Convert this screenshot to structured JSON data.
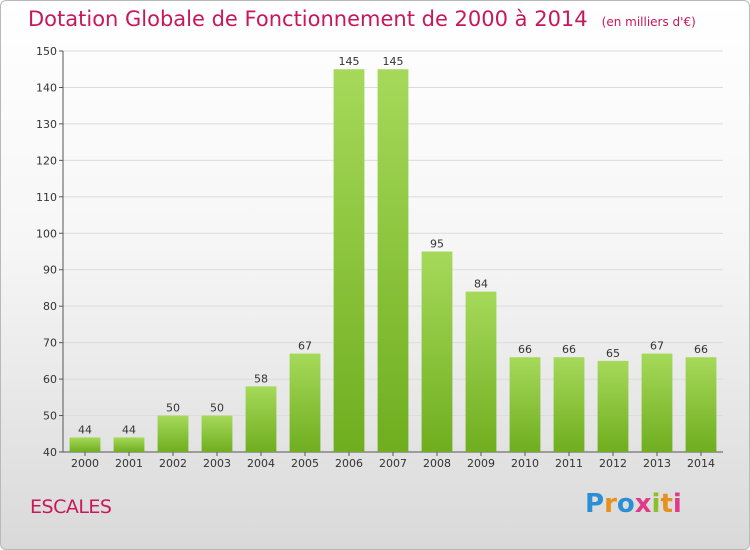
{
  "header": {
    "title": "Dotation Globale de Fonctionnement de 2000 à 2014",
    "subtitle": "(en milliers d'€)"
  },
  "place": "ESCALES",
  "logo": {
    "text": "Proxiti"
  },
  "colors": {
    "title": "#c8175a",
    "bar_light": "#a6d95a",
    "bar_dark": "#6fae1f"
  },
  "chart_data": {
    "type": "bar",
    "title": "Dotation Globale de Fonctionnement de 2000 à 2014",
    "subtitle": "(en milliers d'€)",
    "xlabel": "",
    "ylabel": "",
    "categories": [
      "2000",
      "2001",
      "2002",
      "2003",
      "2004",
      "2005",
      "2006",
      "2007",
      "2008",
      "2009",
      "2010",
      "2011",
      "2012",
      "2013",
      "2014"
    ],
    "values": [
      44,
      44,
      50,
      50,
      58,
      67,
      145,
      145,
      95,
      84,
      66,
      66,
      65,
      67,
      66
    ],
    "ylim": [
      40,
      150
    ],
    "yticks": [
      40,
      50,
      60,
      70,
      80,
      90,
      100,
      110,
      120,
      130,
      140,
      150
    ],
    "grid": true,
    "legend": "none"
  }
}
